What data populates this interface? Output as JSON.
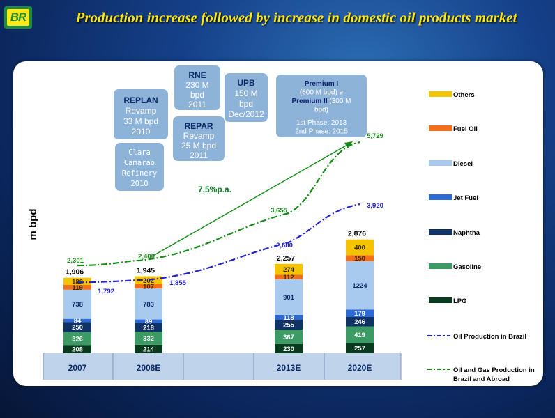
{
  "header": {
    "logo_text": "BR",
    "title": "Production increase followed by increase in domestic oil products market"
  },
  "colors": {
    "Others": "#f5c400",
    "Fuel Oil": "#f26f1b",
    "Diesel": "#a8caee",
    "Jet Fuel": "#2d6ad6",
    "Naphtha": "#0f3366",
    "Gasoline": "#3c9a64",
    "LPG": "#083b1e",
    "oil_line": "#2222cc",
    "og_line": "#138a13",
    "callout": "#8eb3d8"
  },
  "chart_data": {
    "type": "bar",
    "stacked": true,
    "ylabel": "m bpd",
    "categories": [
      "2007",
      "2008E",
      "2013E",
      "2020E"
    ],
    "series": [
      {
        "name": "LPG",
        "values": [
          208,
          214,
          230,
          257
        ]
      },
      {
        "name": "Gasoline",
        "values": [
          326,
          332,
          367,
          419
        ]
      },
      {
        "name": "Naphtha",
        "values": [
          250,
          218,
          255,
          246
        ]
      },
      {
        "name": "Jet Fuel",
        "values": [
          84,
          89,
          118,
          179
        ]
      },
      {
        "name": "Diesel",
        "values": [
          738,
          783,
          901,
          1224
        ]
      },
      {
        "name": "Fuel Oil",
        "values": [
          119,
          107,
          112,
          150
        ]
      },
      {
        "name": "Others",
        "values": [
          182,
          202,
          274,
          400
        ]
      }
    ],
    "totals": [
      1906,
      1945,
      2257,
      2876
    ],
    "total_labels": [
      "1,906",
      "1,945",
      "2,257",
      "2,876"
    ],
    "lines": [
      {
        "name": "Oil Production in Brazil",
        "style": "dash-dot",
        "values": [
          1792,
          1855,
          2680,
          3920
        ],
        "labels": [
          "1,792",
          "1,855",
          "2,680",
          "3,920"
        ]
      },
      {
        "name": "Oil and Gas Production in Brazil and Abroad",
        "style": "dash-dot",
        "values": [
          2301,
          2400,
          3655,
          5729
        ],
        "labels": [
          "2,301",
          "2,400",
          "3,655",
          "5,729"
        ]
      }
    ],
    "legend": [
      "Others",
      "Fuel Oil",
      "Diesel",
      "Jet Fuel",
      "Naphtha",
      "Gasoline",
      "LPG",
      "Oil Production in Brazil",
      "Oil and Gas Production in Brazil and Abroad"
    ],
    "legend_position": "right",
    "growth_annotation": "7,5%p.a."
  },
  "callouts": [
    {
      "id": "replan",
      "lines": [
        {
          "t": "REPLAN",
          "b": true
        },
        {
          "t": "Revamp"
        },
        {
          "t": "33 M bpd"
        },
        {
          "t": "2010"
        }
      ]
    },
    {
      "id": "clara",
      "lines": [
        {
          "t": "Clara"
        },
        {
          "t": "Camarão"
        },
        {
          "t": "Refinery"
        },
        {
          "t": "2010"
        }
      ]
    },
    {
      "id": "rne",
      "lines": [
        {
          "t": "RNE",
          "b": true
        },
        {
          "t": "230 M"
        },
        {
          "t": "bpd"
        },
        {
          "t": "2011"
        }
      ]
    },
    {
      "id": "repar",
      "lines": [
        {
          "t": "REPAR",
          "b": true
        },
        {
          "t": "Revamp"
        },
        {
          "t": "25 M bpd"
        },
        {
          "t": "2011"
        }
      ]
    },
    {
      "id": "upb",
      "lines": [
        {
          "t": "UPB",
          "b": true
        },
        {
          "t": "150 M"
        },
        {
          "t": "bpd"
        },
        {
          "t": "Dec/2012"
        }
      ]
    },
    {
      "id": "premium",
      "lines": [
        {
          "t": "Premium I",
          "b": true
        },
        {
          "t": "(600 M bpd)  e"
        },
        {
          "t": "Premium II",
          "b": true,
          "tail": " (300 M"
        },
        {
          "t": "bpd)"
        },
        {
          "t": "1st Phase: 2013"
        },
        {
          "t": "2nd Phase: 2015"
        }
      ]
    }
  ]
}
